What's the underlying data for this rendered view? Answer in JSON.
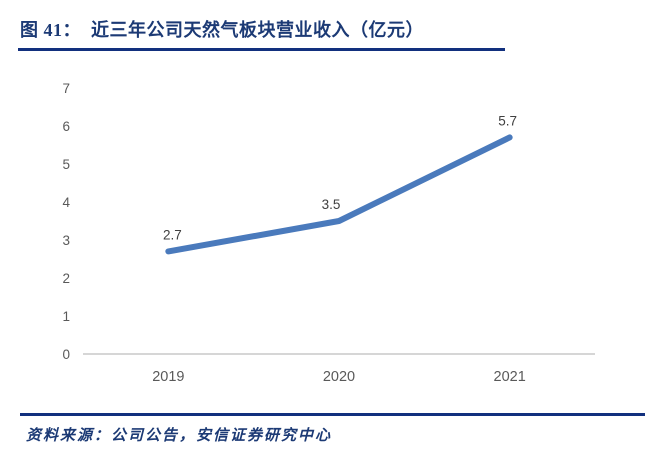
{
  "header": {
    "figure_label": "图 41：",
    "title": "近三年公司天然气板块营业收入（亿元）"
  },
  "chart_data": {
    "type": "line",
    "title": "近三年公司天然气板块营业收入（亿元）",
    "categories": [
      "2019",
      "2020",
      "2021"
    ],
    "series": [
      {
        "name": "天然气板块营业收入",
        "values": [
          2.7,
          3.5,
          5.7
        ]
      }
    ],
    "data_labels": [
      "2.7",
      "3.5",
      "5.7"
    ],
    "xlabel": "",
    "ylabel": "",
    "ylim": [
      0,
      7
    ],
    "yticks": [
      0,
      1,
      2,
      3,
      4,
      5,
      6,
      7
    ],
    "grid": false,
    "legend_position": "none",
    "line_color": "#4a7abc",
    "axis_line_color": "#c9c9c9",
    "tick_label_color": "#595959",
    "data_label_color": "#404040"
  },
  "footer": {
    "source_text": "资料来源：公司公告，安信证券研究中心"
  },
  "colors": {
    "navy": "#12307e",
    "title_text": "#1c3a75",
    "background": "#ffffff"
  }
}
